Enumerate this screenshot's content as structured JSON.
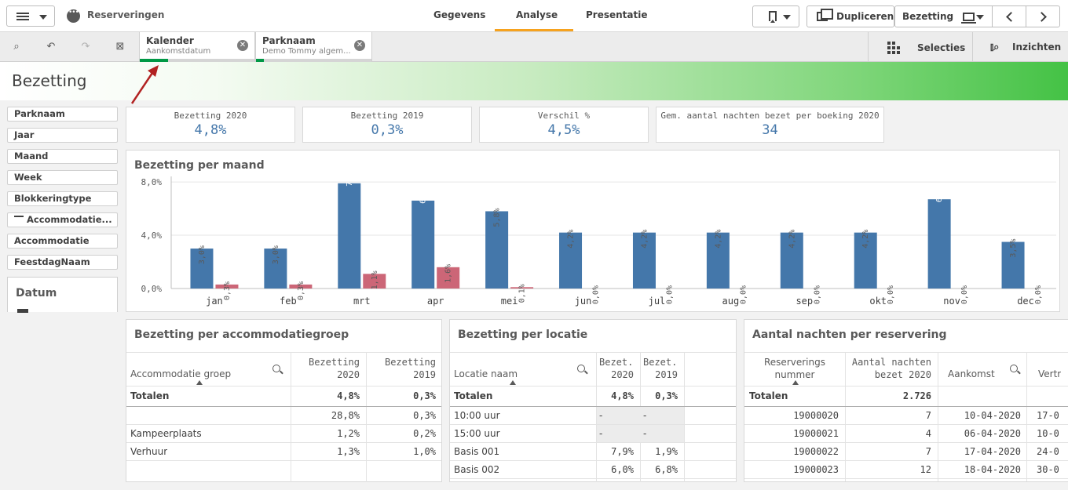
{
  "topbar": {
    "app_title": "Reserveringen",
    "tabs": [
      "Gegevens",
      "Analyse",
      "Presentatie"
    ],
    "duplicate_label": "Dupliceren",
    "sheet_label": "Bezetting"
  },
  "selections": {
    "chips": [
      {
        "title": "Kalender",
        "subtitle": "Aankomstdatum"
      },
      {
        "title": "Parknaam",
        "subtitle": "Demo Tommy algem..."
      }
    ],
    "selecties_label": "Selecties",
    "inzichten_label": "Inzichten"
  },
  "sheet": {
    "title": "Bezetting"
  },
  "filters": [
    "Parknaam",
    "Jaar",
    "Maand",
    "Week",
    "Blokkeringtype",
    "Accommodatie...",
    "Accommodatie",
    "FeestdagNaam"
  ],
  "datum_title": "Datum",
  "kpis": [
    {
      "label": "Bezetting 2020",
      "value": "4,8%"
    },
    {
      "label": "Bezetting 2019",
      "value": "0,3%"
    },
    {
      "label": "Verschil %",
      "value": "4,5%"
    },
    {
      "label": "Gem. aantal nachten bezet per boeking 2020",
      "value": "34"
    }
  ],
  "colors": {
    "series2020": "#4477aa",
    "series2019": "#cc6677",
    "accent": "#009845"
  },
  "chart_data": {
    "type": "bar",
    "title": "Bezetting per maand",
    "categories": [
      "jan",
      "feb",
      "mrt",
      "apr",
      "mei",
      "jun",
      "jul",
      "aug",
      "sep",
      "okt",
      "nov",
      "dec"
    ],
    "series": [
      {
        "name": "Bezetting 2020",
        "values": [
          3.0,
          3.0,
          7.9,
          6.6,
          5.8,
          4.2,
          4.2,
          4.2,
          4.2,
          4.2,
          6.7,
          3.5
        ]
      },
      {
        "name": "Bezetting 2019",
        "values": [
          0.3,
          0.3,
          1.1,
          1.6,
          0.1,
          0.0,
          0.0,
          0.0,
          0.0,
          0.0,
          0.0,
          0.0
        ]
      }
    ],
    "labels": [
      [
        "3,0%",
        "3,0%",
        "7,9%",
        "6,6%",
        "5,8%",
        "4,2%",
        "4,2%",
        "4,2%",
        "4,2%",
        "4,2%",
        "6,7%",
        "3,5%"
      ],
      [
        "0,3%",
        "0,3%",
        "1,1%",
        "1,6%",
        "0,1%",
        "0,0%",
        "0,0%",
        "0,0%",
        "0,0%",
        "0,0%",
        "0,0%",
        "0,0%"
      ]
    ],
    "yticks": [
      0,
      4,
      8
    ],
    "ytick_labels": [
      "0,0%",
      "4,0%",
      "8,0%"
    ],
    "ylim": [
      0,
      8.3
    ],
    "xlabel": "",
    "ylabel": ""
  },
  "table_groep": {
    "title": "Bezetting per accommodatiegroep",
    "headers": [
      "Accommodatie groep",
      "Bezetting 2020",
      "Bezetting 2019"
    ],
    "totals": [
      "Totalen",
      "4,8%",
      "0,3%"
    ],
    "rows": [
      [
        "",
        "28,8%",
        "0,3%"
      ],
      [
        "Kampeerplaats",
        "1,2%",
        "0,2%"
      ],
      [
        "Verhuur",
        "1,3%",
        "1,0%"
      ]
    ]
  },
  "table_locatie": {
    "title": "Bezetting per locatie",
    "headers": [
      "Locatie naam",
      "Bezet... 2020",
      "Bezet... 2019"
    ],
    "totals": [
      "Totalen",
      "4,8%",
      "0,3%"
    ],
    "rows": [
      [
        "10:00 uur",
        "-",
        "-"
      ],
      [
        "15:00 uur",
        "-",
        "-"
      ],
      [
        "Basis 001",
        "7,9%",
        "1,9%"
      ],
      [
        "Basis 002",
        "6,0%",
        "6,8%"
      ]
    ]
  },
  "table_nachten": {
    "title": "Aantal nachten per reservering",
    "headers": [
      "Reserverings nummer",
      "Aantal nachten bezet 2020",
      "Aankomst",
      "Vertr"
    ],
    "totals": [
      "Totalen",
      "2.726",
      "",
      ""
    ],
    "rows": [
      [
        "19000020",
        "7",
        "10-04-2020",
        "17-0"
      ],
      [
        "19000021",
        "4",
        "06-04-2020",
        "10-0"
      ],
      [
        "19000022",
        "7",
        "17-04-2020",
        "24-0"
      ],
      [
        "19000023",
        "12",
        "18-04-2020",
        "30-0"
      ]
    ]
  }
}
